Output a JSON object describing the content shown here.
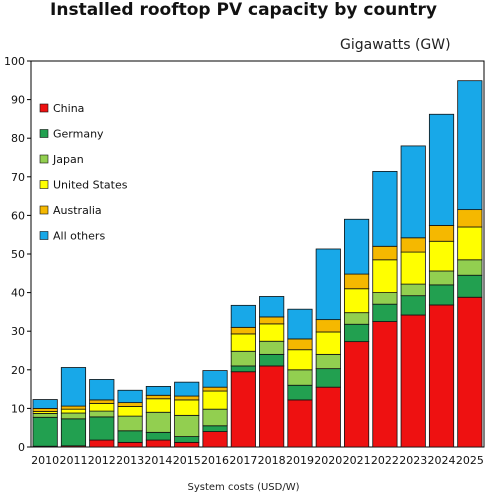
{
  "chart_data": {
    "type": "bar",
    "stacked": true,
    "title": "Installed rooftop PV capacity by country",
    "ylabel": "Gigawatts (GW)",
    "xlabel": "System costs (USD/W)",
    "ylim": [
      0,
      100
    ],
    "yticks": [
      0,
      10,
      20,
      30,
      40,
      50,
      60,
      70,
      80,
      90,
      100
    ],
    "grid": false,
    "legend_position": "top-left inside",
    "categories": [
      "2010",
      "2011",
      "2012",
      "2013",
      "2014",
      "2015",
      "2016",
      "2017",
      "2018",
      "2019",
      "2020",
      "2021",
      "2022",
      "2023",
      "2024",
      "2025"
    ],
    "series": [
      {
        "name": "China",
        "color": "#ee1111",
        "values": [
          0.2,
          0.3,
          1.8,
          1.2,
          1.8,
          1.2,
          4.0,
          19.5,
          21.0,
          12.2,
          15.5,
          27.3,
          32.5,
          34.2,
          36.8,
          38.8
        ]
      },
      {
        "name": "Germany",
        "color": "#22a050",
        "values": [
          7.5,
          7.0,
          6.0,
          3.0,
          2.0,
          1.5,
          1.5,
          1.5,
          3.0,
          3.8,
          4.8,
          4.5,
          4.5,
          5.0,
          5.2,
          5.7
        ]
      },
      {
        "name": "Japan",
        "color": "#92cf50",
        "values": [
          1.0,
          1.5,
          1.5,
          3.8,
          5.2,
          5.5,
          4.3,
          3.8,
          3.4,
          4.0,
          3.7,
          3.0,
          3.0,
          3.0,
          3.6,
          4.0
        ]
      },
      {
        "name": "United States",
        "color": "#ffff00",
        "values": [
          0.5,
          1.0,
          2.0,
          2.5,
          3.5,
          4.0,
          4.7,
          4.5,
          4.5,
          5.2,
          5.8,
          6.2,
          8.5,
          8.3,
          7.7,
          8.5
        ]
      },
      {
        "name": "Australia",
        "color": "#f5b800",
        "values": [
          0.8,
          0.8,
          0.9,
          1.0,
          0.9,
          1.0,
          1.0,
          1.7,
          1.8,
          2.8,
          3.2,
          3.8,
          3.5,
          3.7,
          4.1,
          4.5
        ]
      },
      {
        "name": "All others",
        "color": "#18a8e8",
        "values": [
          2.3,
          10.0,
          5.3,
          3.2,
          2.3,
          3.6,
          4.3,
          5.7,
          5.3,
          7.7,
          18.3,
          14.2,
          19.4,
          23.8,
          28.8,
          33.4
        ]
      }
    ]
  }
}
